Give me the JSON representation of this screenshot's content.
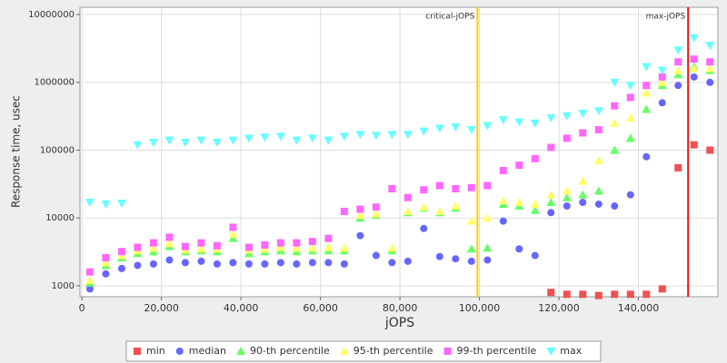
{
  "chart_data": {
    "type": "scatter",
    "log_y": true,
    "grid": true,
    "legend": "bottom",
    "xlabel": "jOPS",
    "ylabel": "Response time, usec",
    "xlim": [
      -500,
      160000
    ],
    "ylim": [
      690,
      12800000
    ],
    "xticks": [
      0,
      {
        "value": 20000,
        "label": "20,000"
      },
      {
        "value": 40000,
        "label": "40,000"
      },
      {
        "value": 60000,
        "label": "60,000"
      },
      {
        "value": 80000,
        "label": "80,000"
      },
      {
        "value": 100000,
        "label": "100,000"
      },
      {
        "value": 120000,
        "label": "120,000"
      },
      {
        "value": 140000,
        "label": "140,000"
      }
    ],
    "yticks": [
      1000,
      10000,
      100000,
      1000000,
      10000000
    ],
    "vlines": [
      {
        "x": 99500,
        "label": "critical-jOPS",
        "color": "#ffcc00"
      },
      {
        "x": 152500,
        "label": "max-jOPS",
        "color": "#ee1111"
      }
    ],
    "x": [
      2000,
      6000,
      10000,
      14000,
      18000,
      22000,
      26000,
      30000,
      34000,
      38000,
      42000,
      46000,
      50000,
      54000,
      58000,
      62000,
      66000,
      70000,
      74000,
      78000,
      82000,
      86000,
      90000,
      94000,
      98000,
      102000,
      106000,
      110000,
      114000,
      118000,
      122000,
      126000,
      130000,
      134000,
      138000,
      142000,
      146000,
      150000,
      154000,
      158000
    ],
    "series": [
      {
        "name": "min",
        "color": "#f05050",
        "marker": "square",
        "values": [
          null,
          null,
          null,
          null,
          null,
          null,
          null,
          null,
          null,
          null,
          null,
          null,
          null,
          null,
          null,
          null,
          null,
          null,
          null,
          null,
          null,
          null,
          null,
          null,
          null,
          null,
          null,
          null,
          null,
          800,
          750,
          750,
          720,
          750,
          750,
          750,
          900,
          55000,
          120000,
          100000
        ]
      },
      {
        "name": "median",
        "color": "#6666ff",
        "marker": "circle",
        "values": [
          900,
          1500,
          1800,
          2000,
          2100,
          2400,
          2200,
          2300,
          2100,
          2200,
          2100,
          2100,
          2200,
          2100,
          2200,
          2200,
          2100,
          5500,
          2800,
          2200,
          2300,
          7000,
          2700,
          2500,
          2300,
          2400,
          9000,
          3500,
          2800,
          12000,
          15000,
          17000,
          16000,
          15000,
          22000,
          80000,
          500000,
          900000,
          1200000,
          1000000
        ]
      },
      {
        "name": "90-th percentile",
        "color": "#66ff66",
        "marker": "triangle",
        "values": [
          1100,
          2000,
          2600,
          3000,
          3200,
          3800,
          3200,
          3300,
          3200,
          5000,
          3000,
          3200,
          3300,
          3200,
          3300,
          3300,
          3300,
          10000,
          11000,
          3300,
          12000,
          14000,
          12000,
          14000,
          3500,
          3600,
          16000,
          15000,
          13000,
          17000,
          20000,
          22000,
          25000,
          100000,
          150000,
          400000,
          900000,
          1300000,
          1700000,
          1500000
        ]
      },
      {
        "name": "95-th percentile",
        "color": "#ffff66",
        "marker": "triangle",
        "values": [
          1200,
          2200,
          2800,
          3300,
          3600,
          4200,
          3400,
          3500,
          3500,
          5800,
          3400,
          3500,
          3700,
          3600,
          3600,
          3700,
          3600,
          11000,
          11500,
          3600,
          12500,
          14500,
          12500,
          15000,
          9000,
          10000,
          18000,
          17000,
          16000,
          22000,
          25000,
          35000,
          70000,
          250000,
          300000,
          700000,
          1000000,
          1500000,
          1600000,
          1600000
        ]
      },
      {
        "name": "99-th percentile",
        "color": "#ff66ff",
        "marker": "square",
        "values": [
          1600,
          2600,
          3200,
          3700,
          4300,
          5200,
          3800,
          4300,
          3900,
          7300,
          3700,
          4000,
          4300,
          4300,
          4500,
          5000,
          12500,
          13500,
          14500,
          27000,
          20000,
          26000,
          30000,
          27000,
          28000,
          30000,
          50000,
          60000,
          75000,
          110000,
          150000,
          180000,
          200000,
          450000,
          600000,
          900000,
          1200000,
          2000000,
          2200000,
          2000000
        ]
      },
      {
        "name": "max",
        "color": "#66ffff",
        "marker": "triangle-down",
        "values": [
          17000,
          16000,
          16500,
          120000,
          130000,
          140000,
          130000,
          140000,
          130000,
          140000,
          150000,
          155000,
          160000,
          140000,
          150000,
          140000,
          160000,
          170000,
          165000,
          170000,
          170000,
          190000,
          210000,
          220000,
          200000,
          230000,
          280000,
          260000,
          250000,
          300000,
          320000,
          350000,
          380000,
          1000000,
          900000,
          1700000,
          1500000,
          3000000,
          4500000,
          3500000
        ]
      }
    ]
  }
}
